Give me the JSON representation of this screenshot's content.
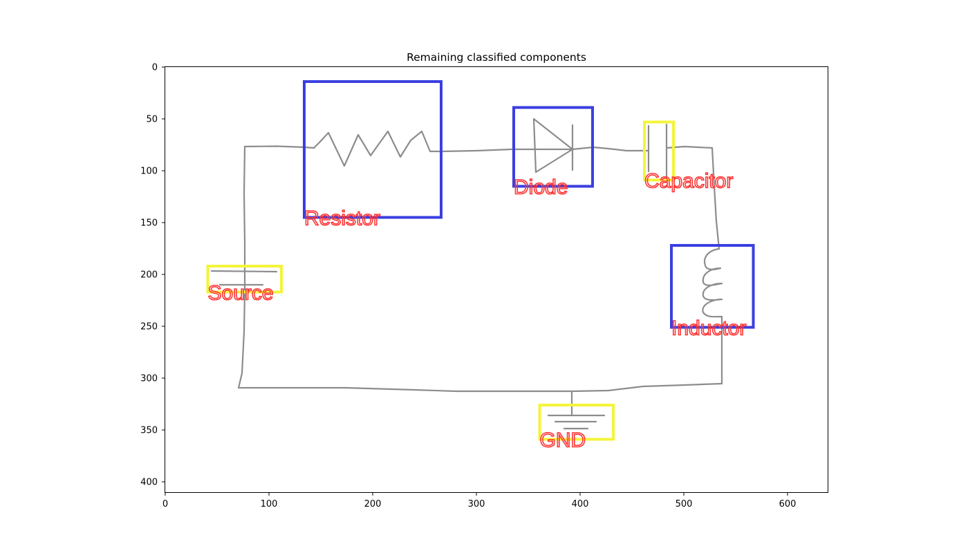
{
  "figure": {
    "title": "Remaining classified components",
    "x_ticks": [
      "0",
      "100",
      "200",
      "300",
      "400",
      "500",
      "600"
    ],
    "y_ticks": [
      "0",
      "50",
      "100",
      "150",
      "200",
      "250",
      "300",
      "350",
      "400"
    ]
  },
  "colors": {
    "wire": "#8c8c8c",
    "box_blue": "#3a3fe0",
    "box_yellow": "#f4f43a",
    "label_red": "#ff3434"
  },
  "components": [
    {
      "label": "Resistor",
      "box_color": "blue",
      "bbox_data": [
        134,
        14,
        266,
        145
      ]
    },
    {
      "label": "Diode",
      "box_color": "blue",
      "bbox_data": [
        336,
        39,
        412,
        115
      ]
    },
    {
      "label": "Capacitor",
      "box_color": "yellow",
      "bbox_data": [
        462,
        53,
        490,
        109
      ]
    },
    {
      "label": "Inductor",
      "box_color": "blue",
      "bbox_data": [
        488,
        172,
        567,
        251
      ]
    },
    {
      "label": "Source",
      "box_color": "yellow",
      "bbox_data": [
        41,
        192,
        112,
        217
      ]
    },
    {
      "label": "GND",
      "box_color": "yellow",
      "bbox_data": [
        361,
        326,
        432,
        359
      ]
    }
  ]
}
